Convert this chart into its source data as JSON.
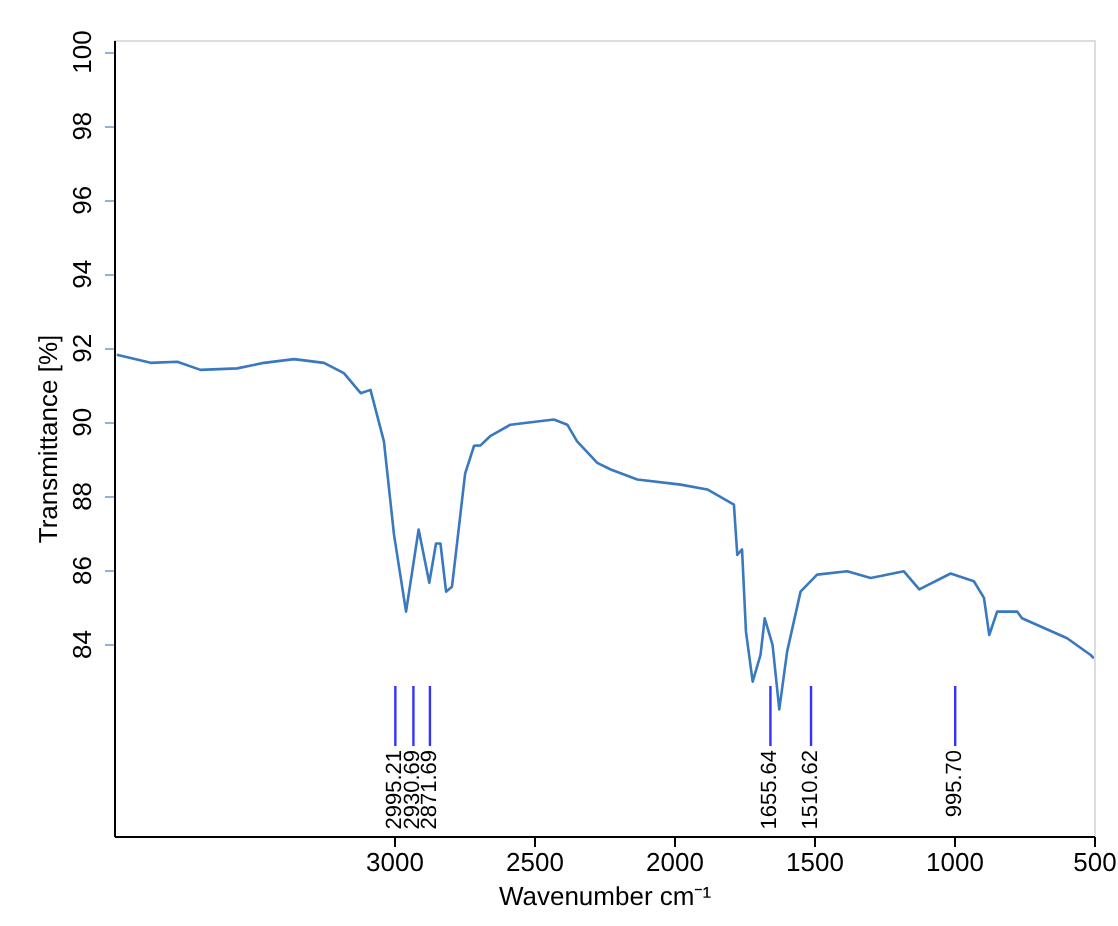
{
  "chart_data": {
    "type": "line",
    "xlabel": "Wavenumber cm⁻¹",
    "ylabel": "Transmittance [%]",
    "x": [
      3990,
      3869,
      3774,
      3691,
      3560,
      3464,
      3357,
      3250,
      3179,
      3119,
      3084,
      3036,
      3000,
      2957,
      2912,
      2874,
      2850,
      2834,
      2814,
      2793,
      2774,
      2746,
      2714,
      2691,
      2655,
      2584,
      2429,
      2381,
      2346,
      2274,
      2226,
      2131,
      1976,
      1881,
      1786,
      1774,
      1757,
      1743,
      1719,
      1691,
      1676,
      1648,
      1624,
      1596,
      1548,
      1489,
      1381,
      1298,
      1262,
      1179,
      1124,
      1012,
      929,
      893,
      874,
      846,
      774,
      757,
      596,
      512,
      500
    ],
    "series": [
      {
        "color": "#3a78c0",
        "values": [
          91.8,
          91.58,
          91.61,
          91.39,
          91.43,
          91.58,
          91.68,
          91.58,
          91.3,
          90.76,
          90.85,
          89.46,
          86.94,
          84.86,
          87.08,
          85.64,
          86.7,
          86.7,
          85.4,
          85.53,
          86.76,
          88.59,
          89.34,
          89.35,
          89.61,
          89.91,
          90.05,
          89.91,
          89.46,
          88.88,
          88.7,
          88.43,
          88.29,
          88.16,
          87.75,
          86.39,
          86.54,
          84.32,
          82.97,
          83.69,
          84.68,
          83.96,
          82.22,
          83.78,
          85.4,
          85.86,
          85.95,
          85.77,
          85.82,
          85.95,
          85.46,
          85.89,
          85.68,
          85.23,
          84.23,
          84.86,
          84.86,
          84.68,
          84.14,
          83.69,
          83.6
        ]
      }
    ],
    "xlim": [
      4000,
      500
    ],
    "xticks": [
      3000,
      2500,
      2000,
      1500,
      1000,
      500
    ],
    "ylim": [
      78.8,
      100.3
    ],
    "yticks": [
      84,
      86,
      88,
      90,
      92,
      94,
      96,
      98,
      100
    ],
    "grid": false,
    "marker": "none",
    "line_style": "solid",
    "ref_lines": [
      {
        "axis": "x",
        "value": 2995.21,
        "label": "2995.21",
        "color": "#3333ff"
      },
      {
        "axis": "x",
        "value": 2930.69,
        "label": "2930.69",
        "color": "#3333ff"
      },
      {
        "axis": "x",
        "value": 2871.69,
        "label": "2871.69",
        "color": "#3333ff"
      },
      {
        "axis": "x",
        "value": 1655.64,
        "label": "1655.64",
        "color": "#3333ff"
      },
      {
        "axis": "x",
        "value": 1510.62,
        "label": "1510.62",
        "color": "#3333ff"
      },
      {
        "axis": "x",
        "value": 995.7,
        "label": "995.70",
        "color": "#3333ff"
      }
    ]
  }
}
